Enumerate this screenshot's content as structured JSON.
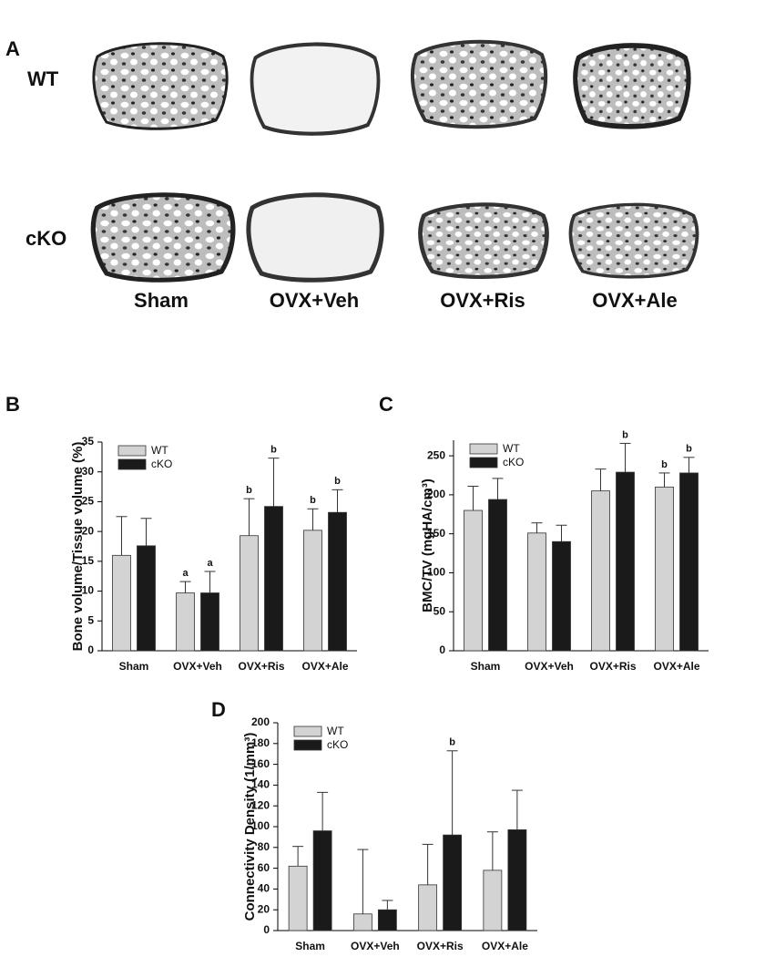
{
  "panel_a": {
    "label": "A",
    "rows": [
      "WT",
      "cKO"
    ],
    "columns": [
      "Sham",
      "OVX+Veh",
      "OVX+Ris",
      "OVX+Ale"
    ]
  },
  "chart_data": [
    {
      "type": "bar",
      "panel": "B",
      "y_label": "Bone volume/Tissue volume (%)",
      "categories": [
        "Sham",
        "OVX+Veh",
        "OVX+Ris",
        "OVX+Ale"
      ],
      "series": [
        {
          "name": "WT",
          "color": "#d3d3d3",
          "values": [
            16.0,
            9.7,
            19.3,
            20.2
          ],
          "errors": [
            6.5,
            1.9,
            6.2,
            3.6
          ],
          "annotations": [
            null,
            "a",
            "b",
            "b"
          ]
        },
        {
          "name": "cKO",
          "color": "#1a1a1a",
          "values": [
            17.6,
            9.7,
            24.2,
            23.2
          ],
          "errors": [
            4.6,
            3.6,
            8.1,
            3.8
          ],
          "annotations": [
            null,
            "a",
            "b",
            "b"
          ]
        }
      ],
      "ylim": [
        0,
        35
      ],
      "yticks": [
        0,
        5,
        10,
        15,
        20,
        25,
        30,
        35
      ],
      "legend": "upper-left"
    },
    {
      "type": "bar",
      "panel": "C",
      "y_label": "BMC/TV (mgHA/cm³)",
      "categories": [
        "Sham",
        "OVX+Veh",
        "OVX+Ris",
        "OVX+Ale"
      ],
      "series": [
        {
          "name": "WT",
          "color": "#d3d3d3",
          "values": [
            180,
            151,
            205,
            210
          ],
          "errors": [
            31,
            13,
            28,
            18
          ],
          "annotations": [
            null,
            null,
            null,
            "b"
          ]
        },
        {
          "name": "cKO",
          "color": "#1a1a1a",
          "values": [
            194,
            140,
            229,
            228
          ],
          "errors": [
            27,
            21,
            37,
            20
          ],
          "annotations": [
            null,
            null,
            "b",
            "b"
          ]
        }
      ],
      "ylim": [
        0,
        270
      ],
      "yticks": [
        0,
        50,
        100,
        150,
        200,
        250
      ],
      "legend": "upper-left"
    },
    {
      "type": "bar",
      "panel": "D",
      "y_label": "Connectivity Density (1/mm³)",
      "categories": [
        "Sham",
        "OVX+Veh",
        "OVX+Ris",
        "OVX+Ale"
      ],
      "series": [
        {
          "name": "WT",
          "color": "#d3d3d3",
          "values": [
            62,
            16,
            44,
            58
          ],
          "errors": [
            19,
            62,
            39,
            37
          ],
          "annotations": [
            null,
            null,
            null,
            null
          ]
        },
        {
          "name": "cKO",
          "color": "#1a1a1a",
          "values": [
            96,
            20,
            92,
            97
          ],
          "errors": [
            37,
            9,
            81,
            38
          ],
          "annotations": [
            null,
            null,
            "b",
            null
          ]
        }
      ],
      "ylim": [
        0,
        200
      ],
      "yticks": [
        0,
        20,
        40,
        60,
        80,
        100,
        120,
        140,
        160,
        180,
        200
      ],
      "legend": "upper-left"
    }
  ]
}
